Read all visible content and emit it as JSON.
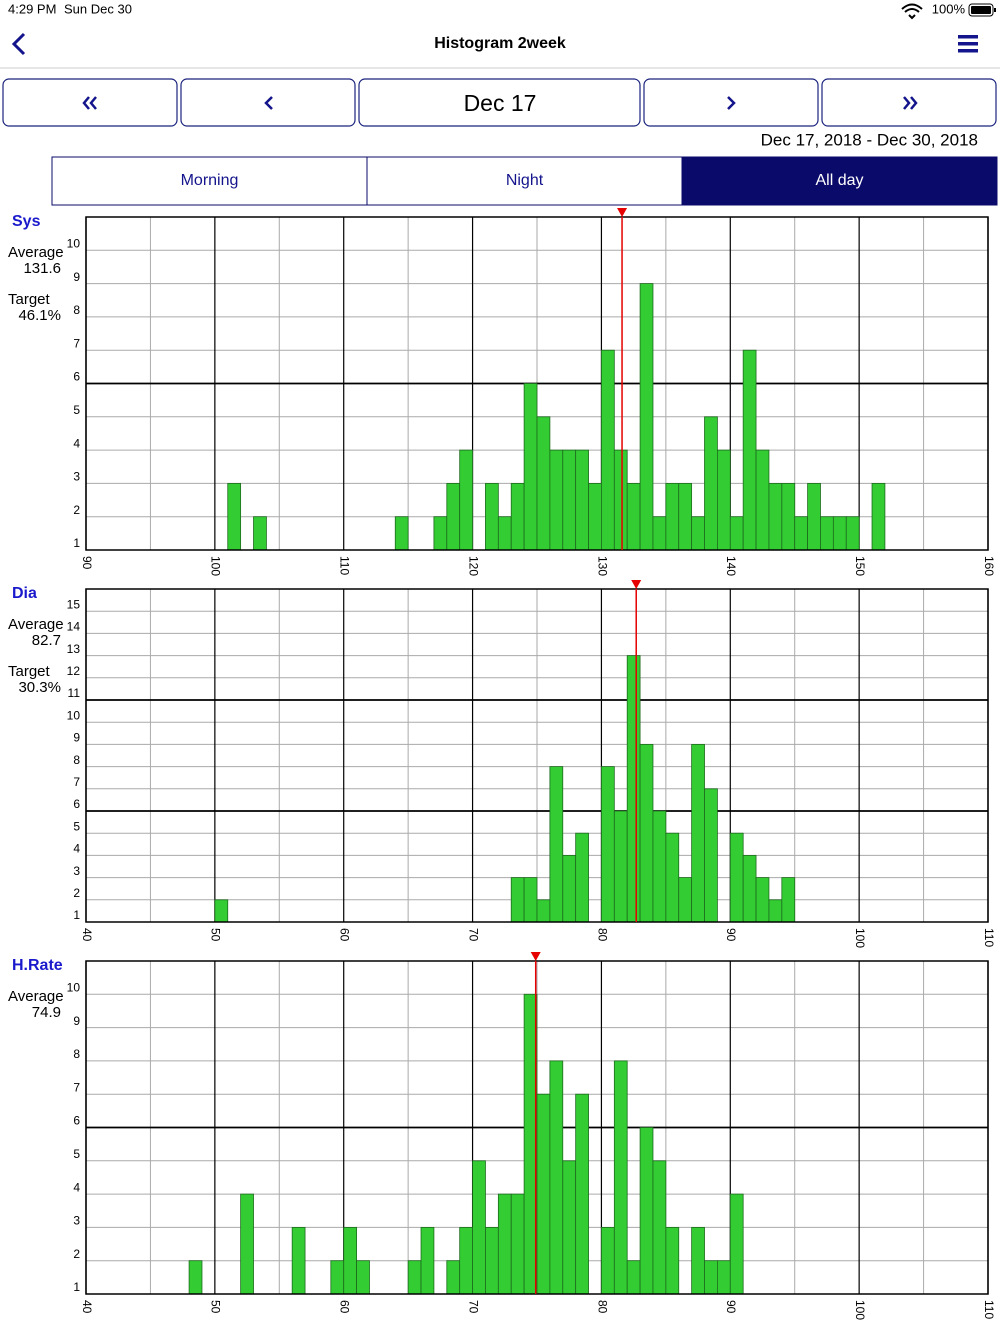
{
  "status_bar": {
    "time": "4:29 PM",
    "date": "Sun Dec 30",
    "battery": "100%"
  },
  "nav": {
    "title": "Histogram  2week"
  },
  "pager": {
    "current": "Dec 17"
  },
  "range": "Dec 17, 2018 - Dec 30, 2018",
  "segments": {
    "options": [
      "Morning",
      "Night",
      "All day"
    ],
    "selected": 2
  },
  "chart_data": [
    {
      "type": "bar",
      "title": "Sys",
      "average_label": "Average",
      "average": 131.6,
      "target_label": "Target",
      "target": "46.1%",
      "x": [
        101,
        103,
        114,
        117,
        118,
        119,
        121,
        122,
        123,
        124,
        125,
        126,
        127,
        128,
        129,
        130,
        131,
        132,
        133,
        134,
        135,
        136,
        137,
        138,
        139,
        140,
        141,
        142,
        143,
        144,
        145,
        146,
        147,
        148,
        149,
        151
      ],
      "values": [
        3,
        2,
        2,
        2,
        3,
        4,
        3,
        2,
        3,
        6,
        5,
        4,
        4,
        4,
        3,
        7,
        4,
        3,
        9,
        2,
        3,
        3,
        2,
        5,
        4,
        2,
        7,
        4,
        3,
        3,
        2,
        3,
        2,
        2,
        2,
        3
      ],
      "color": "#33cc33",
      "marker_color": "#e60000",
      "xlim": [
        90,
        160
      ],
      "xticks": [
        90,
        100,
        110,
        120,
        130,
        140,
        150,
        160
      ],
      "ylim": [
        1,
        11
      ],
      "yticks": [
        1,
        2,
        3,
        4,
        5,
        6,
        7,
        8,
        9,
        10
      ],
      "major_yticks": [
        6
      ]
    },
    {
      "type": "bar",
      "title": "Dia",
      "average_label": "Average",
      "average": 82.7,
      "target_label": "Target",
      "target": "30.3%",
      "x": [
        50,
        73,
        74,
        75,
        76,
        77,
        78,
        80,
        81,
        82,
        83,
        84,
        85,
        86,
        87,
        88,
        90,
        91,
        92,
        93,
        94
      ],
      "values": [
        2,
        3,
        3,
        2,
        8,
        4,
        5,
        8,
        6,
        13,
        9,
        6,
        5,
        3,
        9,
        7,
        5,
        4,
        3,
        2,
        3
      ],
      "color": "#33cc33",
      "marker_color": "#e60000",
      "xlim": [
        40,
        110
      ],
      "xticks": [
        40,
        50,
        60,
        70,
        80,
        90,
        100,
        110
      ],
      "ylim": [
        1,
        16
      ],
      "yticks": [
        1,
        2,
        3,
        4,
        5,
        6,
        7,
        8,
        9,
        10,
        11,
        12,
        13,
        14,
        15
      ],
      "major_yticks": [
        6,
        11
      ]
    },
    {
      "type": "bar",
      "title": "H.Rate",
      "average_label": "Average",
      "average": 74.9,
      "x": [
        48,
        52,
        56,
        59,
        60,
        61,
        65,
        66,
        68,
        69,
        70,
        71,
        72,
        73,
        74,
        75,
        76,
        77,
        78,
        80,
        81,
        82,
        83,
        84,
        85,
        87,
        88,
        89,
        90
      ],
      "values": [
        2,
        4,
        3,
        2,
        3,
        2,
        2,
        3,
        2,
        3,
        5,
        3,
        4,
        4,
        10,
        7,
        8,
        5,
        7,
        3,
        8,
        2,
        6,
        5,
        3,
        3,
        2,
        2,
        4
      ],
      "color": "#33cc33",
      "marker_color": "#e60000",
      "xlim": [
        40,
        110
      ],
      "xticks": [
        40,
        50,
        60,
        70,
        80,
        90,
        100,
        110
      ],
      "ylim": [
        1,
        11
      ],
      "yticks": [
        1,
        2,
        3,
        4,
        5,
        6,
        7,
        8,
        9,
        10
      ],
      "major_yticks": [
        6
      ]
    }
  ]
}
